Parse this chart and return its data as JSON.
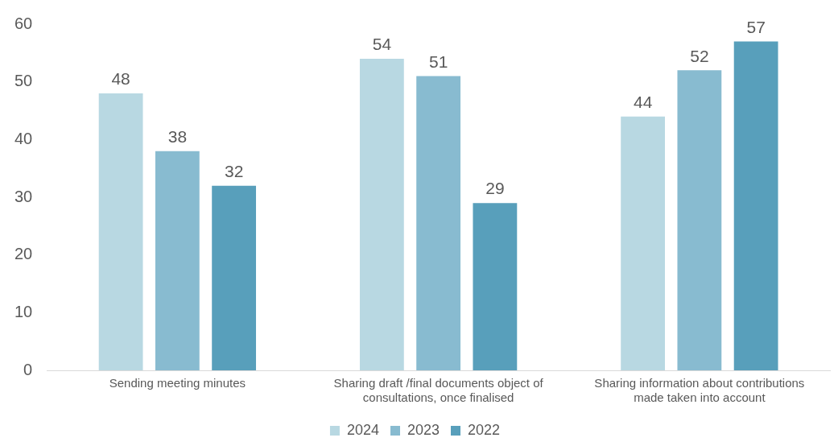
{
  "chart_data": {
    "type": "bar",
    "categories": [
      "Sending meeting minutes",
      "Sharing draft /final documents object of consultations, once finalised",
      "Sharing information about contributions made taken into account"
    ],
    "series": [
      {
        "name": "2024",
        "color": "#b8d8e2",
        "values": [
          48,
          54,
          44
        ]
      },
      {
        "name": "2023",
        "color": "#88bbd0",
        "values": [
          38,
          51,
          52
        ]
      },
      {
        "name": "2022",
        "color": "#589fbb",
        "values": [
          32,
          29,
          57
        ]
      }
    ],
    "ylim": [
      0,
      60
    ],
    "yticks": [
      0,
      10,
      20,
      30,
      40,
      50,
      60
    ],
    "grid": false,
    "legend": "bottom",
    "data_labels": true
  }
}
